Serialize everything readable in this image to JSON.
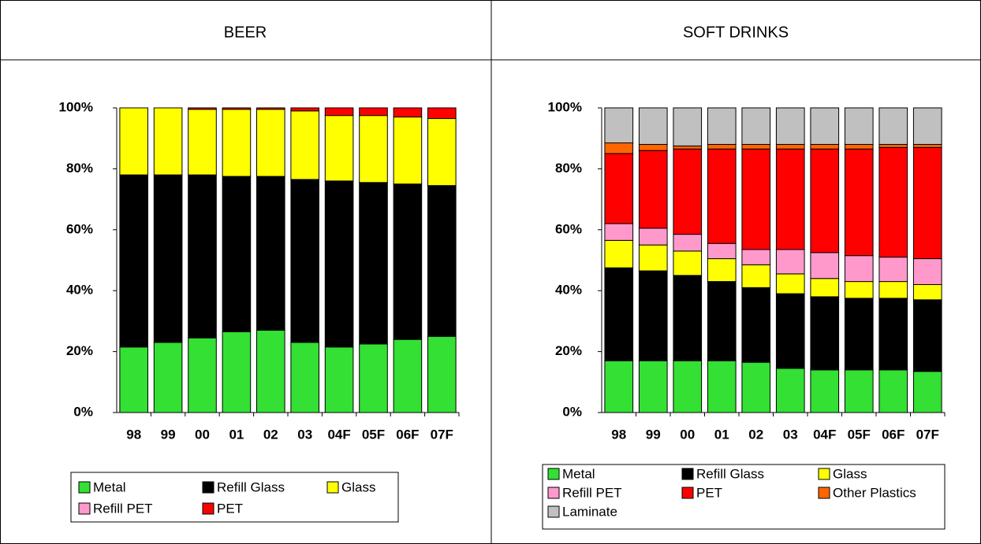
{
  "chart_data": [
    {
      "type": "stacked_bar",
      "title": "BEER",
      "categories": [
        "98",
        "99",
        "00",
        "01",
        "02",
        "03",
        "04F",
        "05F",
        "06F",
        "07F"
      ],
      "ylim": [
        0,
        100
      ],
      "yticks": [
        {
          "value": 0,
          "label": "0%"
        },
        {
          "value": 20,
          "label": "20%"
        },
        {
          "value": 40,
          "label": "40%"
        },
        {
          "value": 60,
          "label": "60%"
        },
        {
          "value": 80,
          "label": "80%"
        },
        {
          "value": 100,
          "label": "100%"
        }
      ],
      "series": [
        {
          "name": "Metal",
          "color": "#33e033",
          "values": [
            21.5,
            23,
            24.5,
            26.5,
            27,
            23,
            21.5,
            22.5,
            24,
            25
          ]
        },
        {
          "name": "Refill Glass",
          "color": "#000000",
          "values": [
            56.5,
            55,
            53.5,
            51,
            50.5,
            53.5,
            54.5,
            53,
            51,
            49.5
          ]
        },
        {
          "name": "Glass",
          "color": "#ffff00",
          "values": [
            22,
            22,
            21.5,
            22,
            22,
            22.5,
            21.5,
            22,
            22,
            22
          ]
        },
        {
          "name": "Refill PET",
          "color": "#ff99cc",
          "values": [
            0,
            0,
            0,
            0,
            0,
            0,
            0,
            0,
            0,
            0
          ]
        },
        {
          "name": "PET",
          "color": "#ff0000",
          "values": [
            0,
            0,
            0.5,
            0.5,
            0.5,
            1,
            2.5,
            2.5,
            3,
            3.5
          ]
        }
      ]
    },
    {
      "type": "stacked_bar",
      "title": "SOFT DRINKS",
      "categories": [
        "98",
        "99",
        "00",
        "01",
        "02",
        "03",
        "04F",
        "05F",
        "06F",
        "07F"
      ],
      "ylim": [
        0,
        100
      ],
      "yticks": [
        {
          "value": 0,
          "label": "0%"
        },
        {
          "value": 20,
          "label": "20%"
        },
        {
          "value": 40,
          "label": "40%"
        },
        {
          "value": 60,
          "label": "60%"
        },
        {
          "value": 80,
          "label": "80%"
        },
        {
          "value": 100,
          "label": "100%"
        }
      ],
      "series": [
        {
          "name": "Metal",
          "color": "#33e033",
          "values": [
            17,
            17,
            17,
            17,
            16.5,
            14.5,
            14,
            14,
            14,
            13.5
          ]
        },
        {
          "name": "Refill Glass",
          "color": "#000000",
          "values": [
            30.5,
            29.5,
            28,
            26,
            24.5,
            24.5,
            24,
            23.5,
            23.5,
            23.5
          ]
        },
        {
          "name": "Glass",
          "color": "#ffff00",
          "values": [
            9,
            8.5,
            8,
            7.5,
            7.5,
            6.5,
            6,
            5.5,
            5.5,
            5
          ]
        },
        {
          "name": "Refill PET",
          "color": "#ff99cc",
          "values": [
            5.5,
            5.5,
            5.5,
            5,
            5,
            8,
            8.5,
            8.5,
            8,
            8.5
          ]
        },
        {
          "name": "PET",
          "color": "#ff0000",
          "values": [
            23,
            25.5,
            28,
            31,
            33,
            33,
            34,
            35,
            36,
            36.5
          ]
        },
        {
          "name": "Other Plastics",
          "color": "#ff6600",
          "values": [
            3.5,
            2,
            1,
            1.5,
            1.5,
            1.5,
            1.5,
            1.5,
            1,
            1
          ]
        },
        {
          "name": "Laminate",
          "color": "#c0c0c0",
          "values": [
            11.5,
            12,
            12.5,
            12,
            12,
            12,
            12,
            12,
            12,
            12
          ]
        }
      ]
    }
  ]
}
